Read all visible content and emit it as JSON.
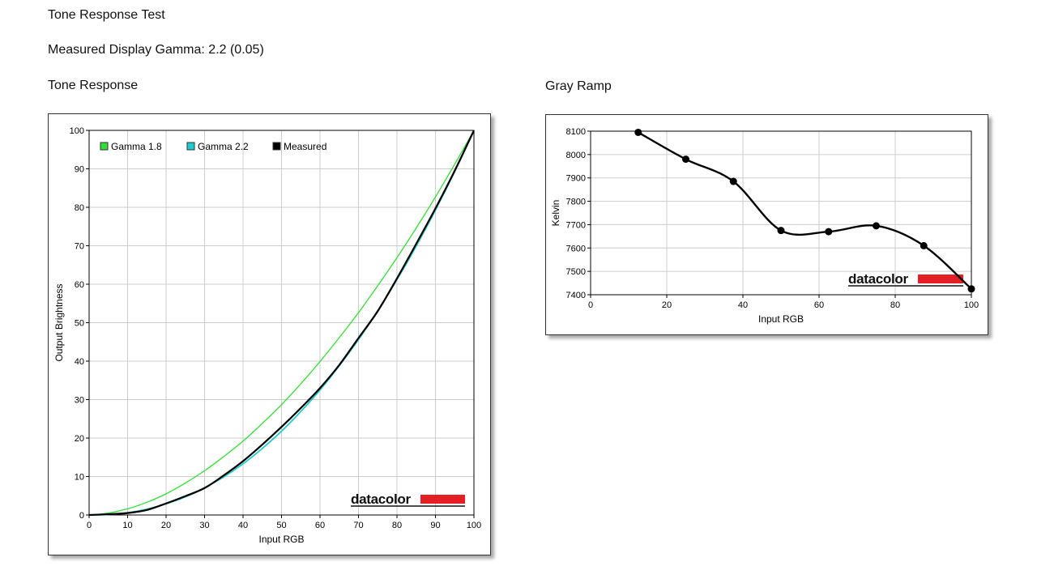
{
  "page": {
    "title": "Tone Response Test",
    "gamma_line": "Measured Display Gamma: 2.2 (0.05)",
    "tone_heading": "Tone Response",
    "gray_heading": "Gray Ramp"
  },
  "logo_text": "datacolor",
  "colors": {
    "gamma18": "#33dd33",
    "gamma22": "#22cccc",
    "measured": "#000000",
    "logo_red": "#e31e24",
    "grid": "#cccccc"
  },
  "chart_data": [
    {
      "type": "line",
      "xlabel": "Input RGB",
      "ylabel": "Output Brightness",
      "xlim": [
        0,
        100
      ],
      "ylim": [
        0,
        100
      ],
      "xticks": [
        0,
        10,
        20,
        30,
        40,
        50,
        60,
        70,
        80,
        90,
        100
      ],
      "yticks": [
        0,
        10,
        20,
        30,
        40,
        50,
        60,
        70,
        80,
        90,
        100
      ],
      "grid": true,
      "legend_position": "top-left",
      "series": [
        {
          "name": "Gamma 1.8",
          "color": "#33dd33",
          "x": [
            0,
            5,
            10,
            15,
            20,
            25,
            30,
            35,
            40,
            45,
            50,
            55,
            60,
            65,
            70,
            75,
            80,
            85,
            90,
            95,
            100
          ],
          "y": [
            0,
            0.5,
            1.6,
            3.3,
            5.5,
            8.3,
            11.5,
            15.2,
            19.2,
            23.8,
            28.7,
            34.1,
            39.9,
            46.1,
            52.6,
            59.6,
            66.9,
            74.6,
            82.7,
            91.2,
            100
          ]
        },
        {
          "name": "Gamma 2.2",
          "color": "#22cccc",
          "x": [
            0,
            5,
            10,
            15,
            20,
            25,
            30,
            35,
            40,
            45,
            50,
            55,
            60,
            65,
            70,
            75,
            80,
            85,
            90,
            95,
            100
          ],
          "y": [
            0,
            0.1,
            0.6,
            1.5,
            2.9,
            4.7,
            7.1,
            9.9,
            13.3,
            17.3,
            21.8,
            26.9,
            32.5,
            38.8,
            45.6,
            53.1,
            61.2,
            69.9,
            79.3,
            89.3,
            100
          ]
        },
        {
          "name": "Measured",
          "color": "#000000",
          "x": [
            0,
            5,
            10,
            15,
            20,
            25,
            30,
            35,
            40,
            45,
            50,
            55,
            60,
            65,
            70,
            75,
            80,
            85,
            90,
            95,
            100
          ],
          "y": [
            0,
            0.2,
            0.5,
            1.3,
            3.0,
            4.9,
            7.0,
            10.3,
            14.0,
            18.3,
            22.9,
            27.8,
            33.0,
            39.0,
            46.0,
            53.0,
            61.5,
            70.5,
            79.7,
            89.5,
            100
          ]
        }
      ]
    },
    {
      "type": "line",
      "xlabel": "Input RGB",
      "ylabel": "Kelvin",
      "xlim": [
        0,
        100
      ],
      "ylim": [
        7400,
        8100
      ],
      "xticks": [
        0,
        20,
        40,
        60,
        80,
        100
      ],
      "yticks": [
        7400,
        7500,
        7600,
        7700,
        7800,
        7900,
        8000,
        8100
      ],
      "grid": true,
      "series": [
        {
          "color": "#000000",
          "x": [
            12.5,
            25,
            37.5,
            50,
            62.5,
            75,
            87.5,
            100
          ],
          "y": [
            8095,
            7980,
            7885,
            7675,
            7670,
            7695,
            7610,
            7425
          ]
        }
      ]
    }
  ]
}
